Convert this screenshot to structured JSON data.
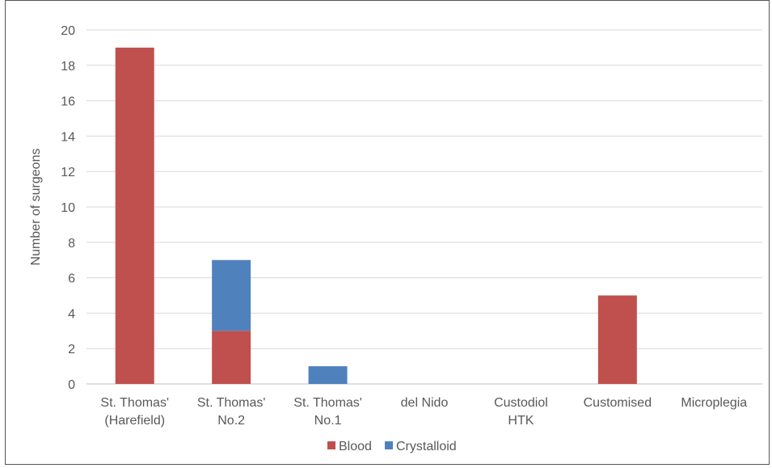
{
  "chart_data": {
    "type": "bar",
    "stacked": true,
    "categories": [
      [
        "St. Thomas'",
        "(Harefield)"
      ],
      [
        "St. Thomas'",
        "No.2"
      ],
      [
        "St. Thomas'",
        "No.1"
      ],
      [
        "del Nido"
      ],
      [
        "Custodiol",
        "HTK"
      ],
      [
        "Customised"
      ],
      [
        "Microplegia"
      ]
    ],
    "series": [
      {
        "name": "Blood",
        "color": "#c0504d",
        "values": [
          19,
          3,
          0,
          0,
          0,
          5,
          0
        ]
      },
      {
        "name": "Crystalloid",
        "color": "#4f81bd",
        "values": [
          0,
          4,
          1,
          0,
          0,
          0,
          0
        ]
      }
    ],
    "ylabel": "Number of surgeons",
    "xlabel": "",
    "ylim": [
      0,
      20
    ],
    "yticks": [
      0,
      2,
      4,
      6,
      8,
      10,
      12,
      14,
      16,
      18,
      20
    ],
    "grid": true,
    "legend_position": "bottom-center"
  }
}
